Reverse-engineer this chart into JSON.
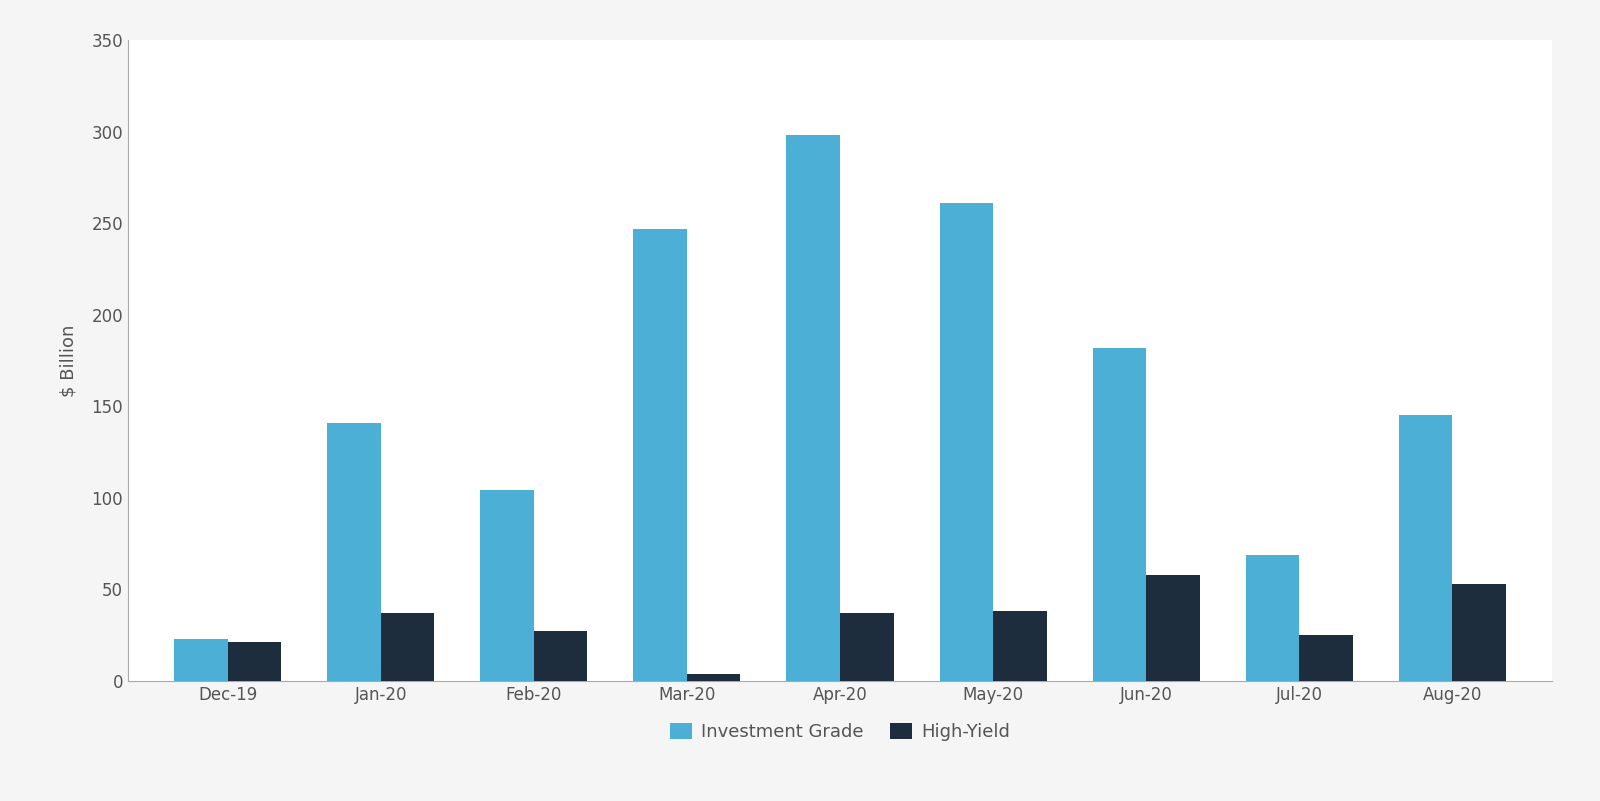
{
  "categories": [
    "Dec-19",
    "Jan-20",
    "Feb-20",
    "Mar-20",
    "Apr-20",
    "May-20",
    "Jun-20",
    "Jul-20",
    "Aug-20"
  ],
  "investment_grade": [
    23,
    141,
    104,
    247,
    298,
    261,
    182,
    69,
    145
  ],
  "high_yield": [
    21,
    37,
    27,
    4,
    37,
    38,
    58,
    25,
    53
  ],
  "ig_color": "#4BAFD6",
  "hy_color": "#1E2D3D",
  "ylabel": "$ Billion",
  "ylim": [
    0,
    350
  ],
  "yticks": [
    0,
    50,
    100,
    150,
    200,
    250,
    300,
    350
  ],
  "legend_ig": "Investment Grade",
  "legend_hy": "High-Yield",
  "bar_width": 0.35,
  "background_color": "#F5F5F5",
  "plot_bg_color": "#FFFFFF",
  "spine_color": "#AAAAAA",
  "left_spine_color": "#555555",
  "text_color": "#555555",
  "label_fontsize": 13,
  "tick_fontsize": 12,
  "legend_fontsize": 13
}
